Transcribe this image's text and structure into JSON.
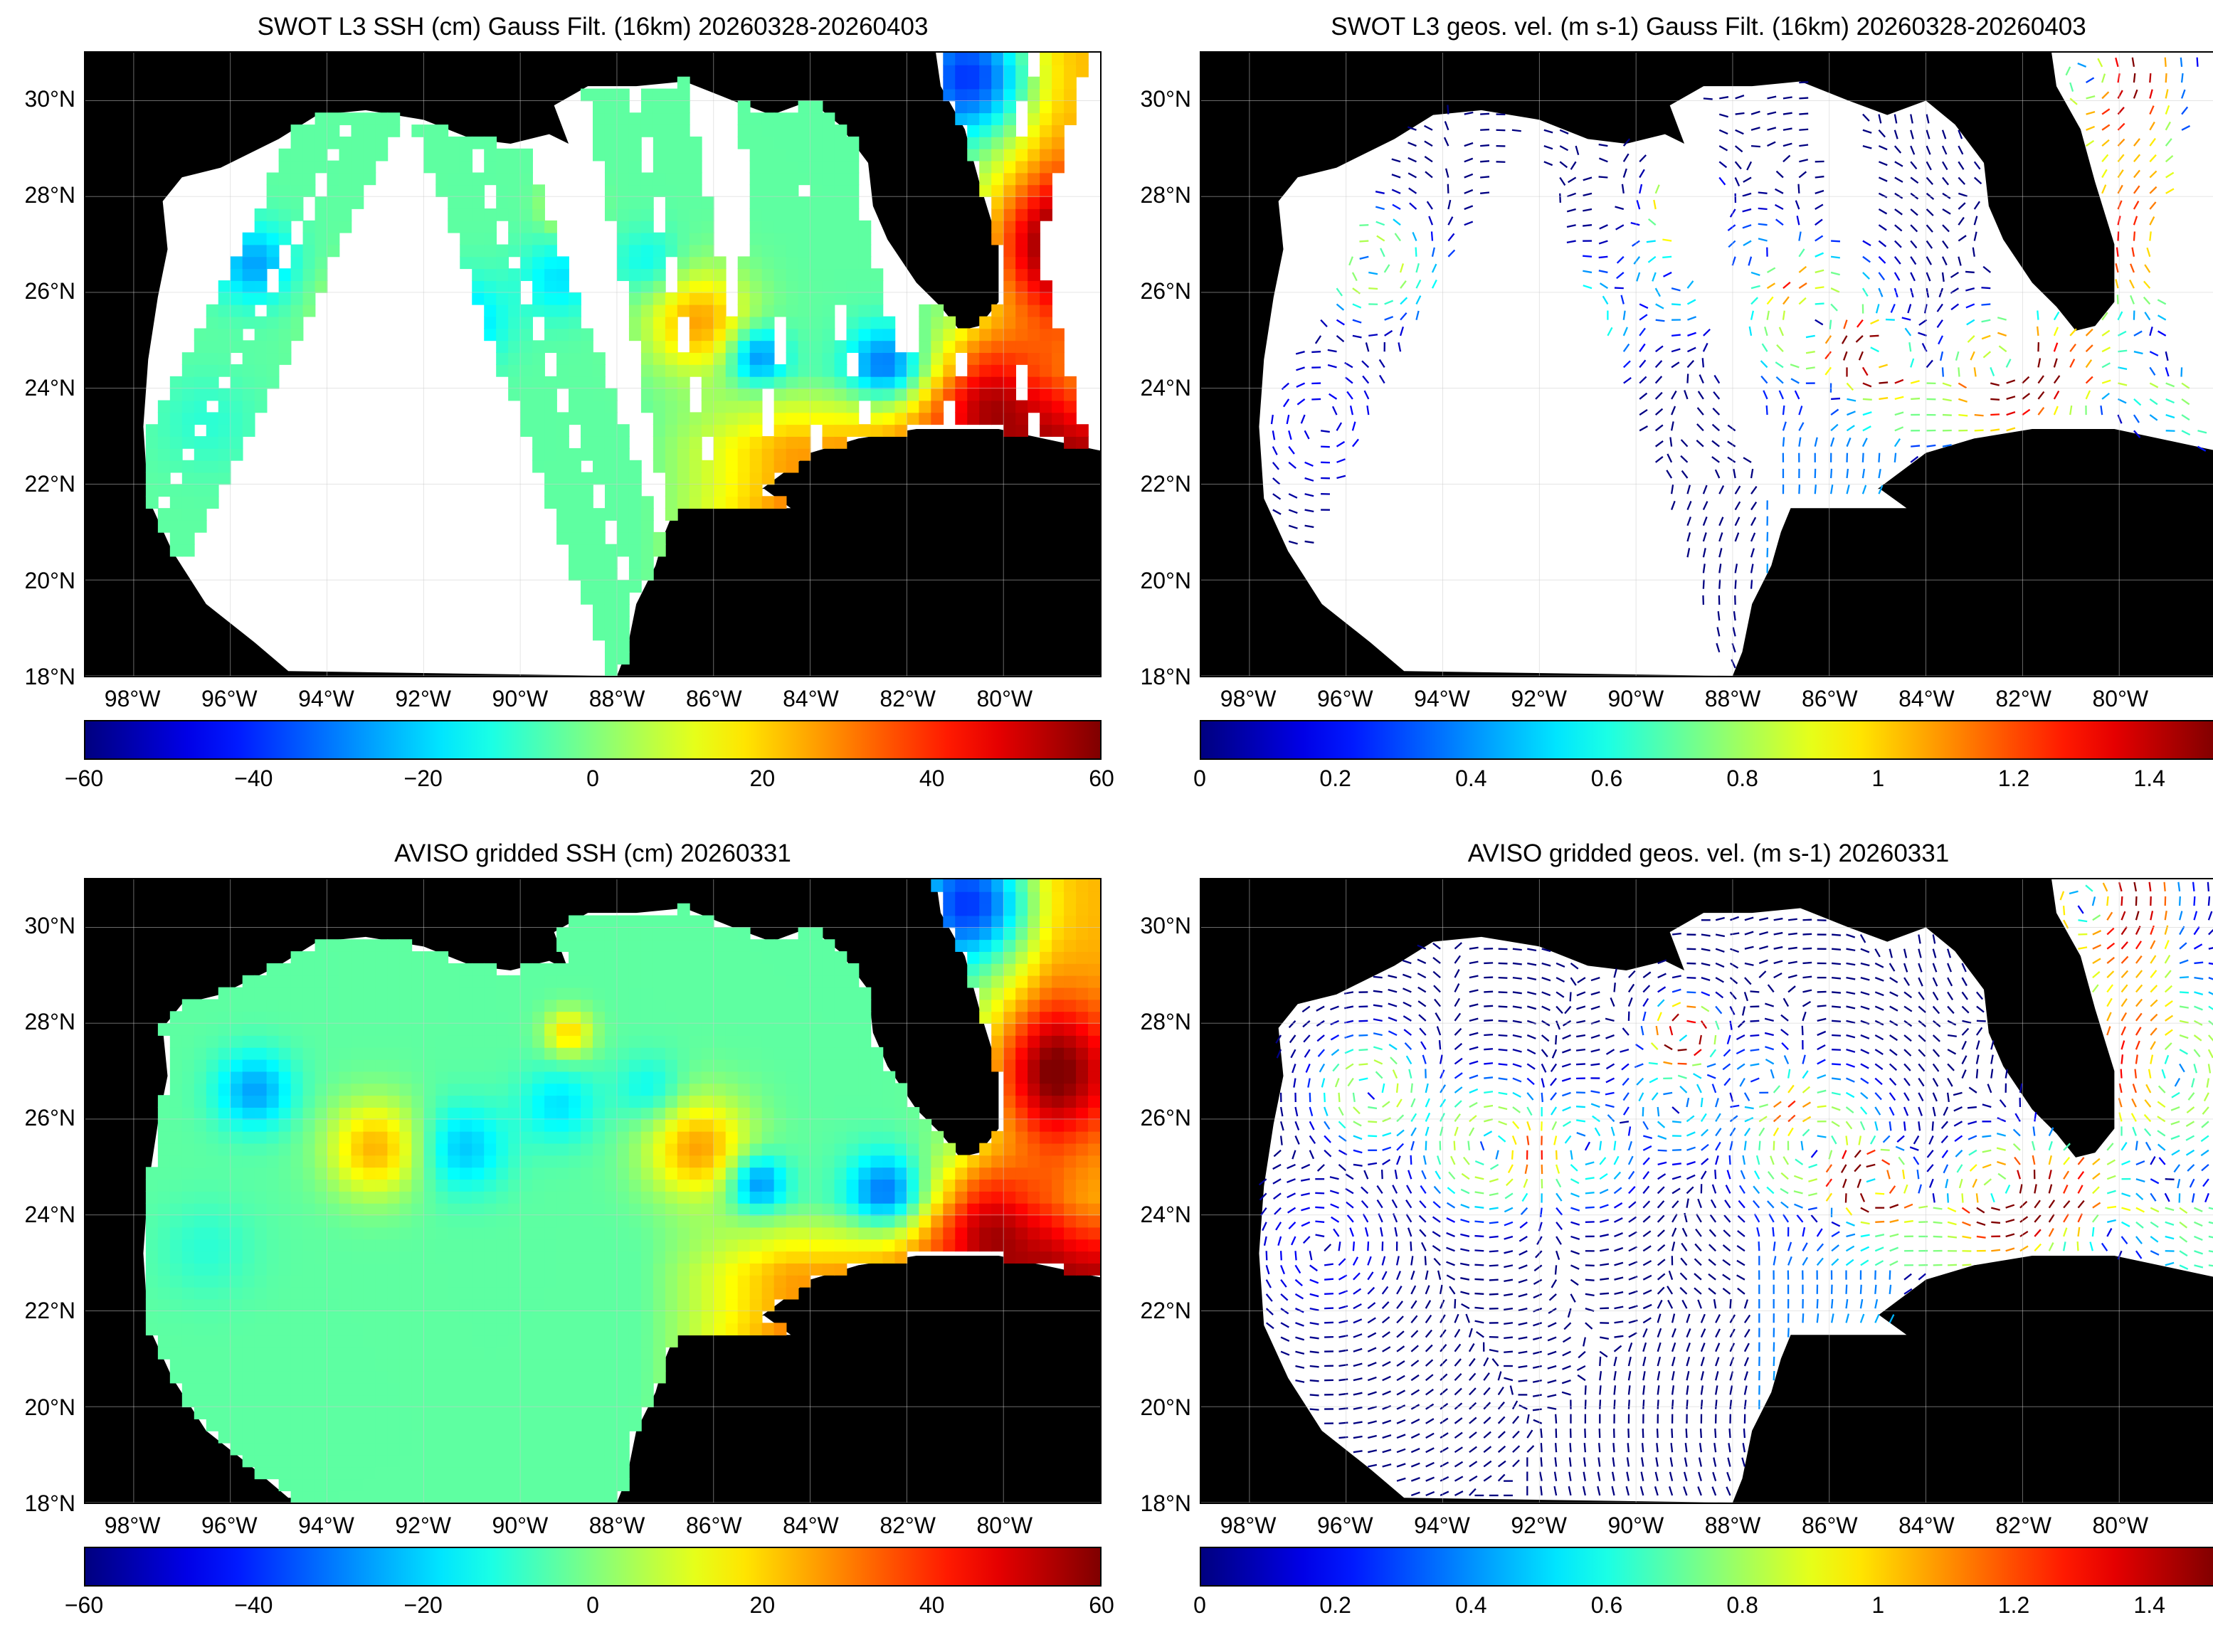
{
  "panels": [
    {
      "title": "SWOT L3 SSH (cm) Gauss Filt. (16km) 20260328-20260403",
      "type": "ssh-swath",
      "colorbar": {
        "min": -60,
        "max": 60,
        "ticks": [
          "-60",
          "-40",
          "-20",
          "0",
          "20",
          "40",
          "60"
        ]
      }
    },
    {
      "title": "SWOT L3 geos. vel. (m s-1) Gauss Filt. (16km) 20260328-20260403",
      "type": "vel-swath",
      "colorbar": {
        "min": 0,
        "max": 1.5,
        "ticks": [
          "0",
          "0.2",
          "0.4",
          "0.6",
          "0.8",
          "1",
          "1.2",
          "1.4"
        ]
      }
    },
    {
      "title": "AVISO gridded SSH (cm) 20260331",
      "type": "ssh-grid",
      "colorbar": {
        "min": -60,
        "max": 60,
        "ticks": [
          "-60",
          "-40",
          "-20",
          "0",
          "20",
          "40",
          "60"
        ]
      }
    },
    {
      "title": "AVISO gridded geos. vel. (m s-1)  20260331",
      "type": "vel-grid",
      "colorbar": {
        "min": 0,
        "max": 1.5,
        "ticks": [
          "0",
          "0.2",
          "0.4",
          "0.6",
          "0.8",
          "1",
          "1.2",
          "1.4"
        ]
      }
    }
  ],
  "axes": {
    "lat_labels": [
      "30°N",
      "28°N",
      "26°N",
      "24°N",
      "22°N",
      "20°N",
      "18°N"
    ],
    "lat_values": [
      30,
      28,
      26,
      24,
      22,
      20,
      18
    ],
    "lon_labels": [
      "98°W",
      "96°W",
      "94°W",
      "92°W",
      "90°W",
      "88°W",
      "86°W",
      "84°W",
      "82°W",
      "80°W"
    ],
    "lon_values": [
      -98,
      -96,
      -94,
      -92,
      -90,
      -88,
      -86,
      -84,
      -82,
      -80
    ],
    "lon_range": [
      -99,
      -78
    ],
    "lat_range": [
      18,
      31
    ]
  },
  "colormap": "jet",
  "colors": {
    "land": "#000000",
    "no_data": "#ffffff",
    "grid": "#cccccc"
  }
}
